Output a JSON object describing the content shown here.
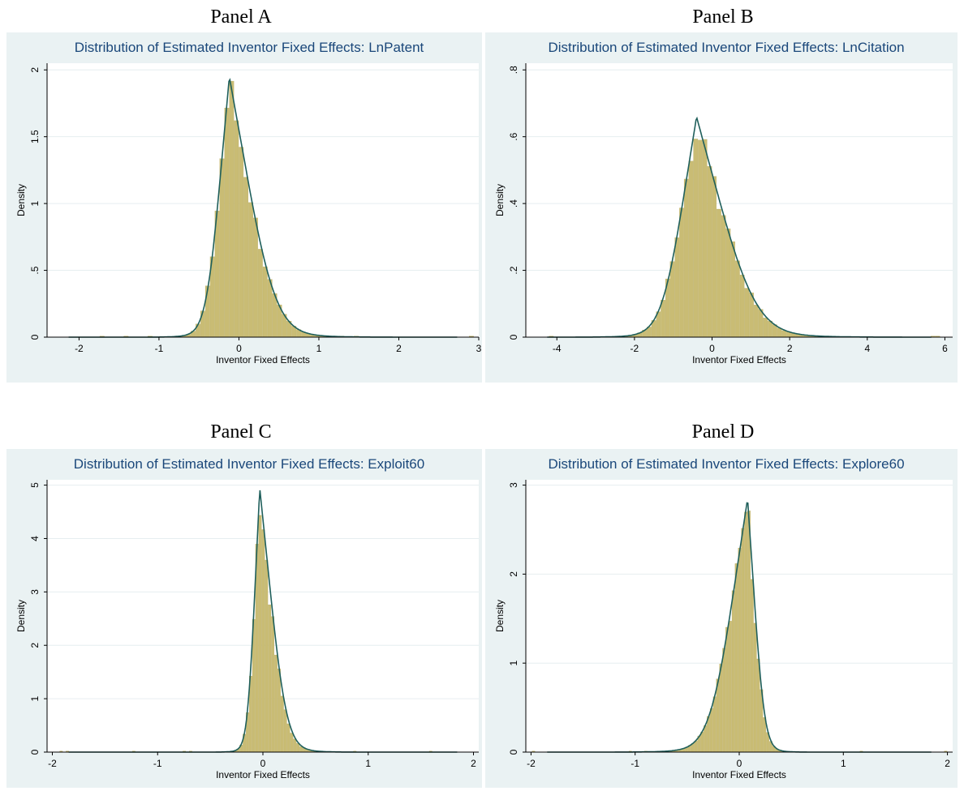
{
  "panels": [
    {
      "label": "Panel A"
    },
    {
      "label": "Panel B"
    },
    {
      "label": "Panel C"
    },
    {
      "label": "Panel D"
    }
  ],
  "colors": {
    "background": "#eaf2f3",
    "plot_area": "#ffffff",
    "bar_fill": "#c9bc74",
    "bar_edge": "#b8ab63",
    "density_line": "#1f5f5b",
    "gridline": "#e6eef0",
    "title": "#1a477a"
  },
  "chart_data": [
    {
      "type": "bar",
      "title": "Distribution of Estimated Inventor Fixed Effects: LnPatent",
      "xlabel": "Inventor Fixed Effects",
      "ylabel": "Density",
      "xlim": [
        -2.4,
        3.0
      ],
      "ylim": [
        0,
        2.05
      ],
      "xticks": [
        -2,
        -1,
        0,
        1,
        2,
        3
      ],
      "xtick_labels": [
        "-2",
        "-1",
        "0",
        "1",
        "2",
        "3"
      ],
      "yticks": [
        0,
        0.5,
        1,
        1.5,
        2
      ],
      "ytick_labels": [
        "0",
        ".5",
        "1",
        "1.5",
        "2"
      ],
      "grid": true,
      "bin_width": 0.06,
      "density": {
        "mode": -0.12,
        "peak": 1.95,
        "left_scale": 0.16,
        "right_scale": 0.32
      },
      "histogram_peak": 1.93
    },
    {
      "type": "bar",
      "title": "Distribution of Estimated Inventor Fixed Effects: LnCitation",
      "xlabel": "Inventor Fixed Effects",
      "ylabel": "Density",
      "xlim": [
        -4.8,
        6.2
      ],
      "ylim": [
        0,
        0.82
      ],
      "xticks": [
        -4,
        -2,
        0,
        2,
        4,
        6
      ],
      "xtick_labels": [
        "-4",
        "-2",
        "0",
        "2",
        "4",
        "6"
      ],
      "yticks": [
        0,
        0.2,
        0.4,
        0.6,
        0.8
      ],
      "ytick_labels": [
        "0",
        ".2",
        ".4",
        ".6",
        ".8"
      ],
      "grid": true,
      "bin_width": 0.12,
      "density": {
        "mode": -0.4,
        "peak": 0.66,
        "left_scale": 0.5,
        "right_scale": 0.85
      },
      "histogram_peak": 0.65
    },
    {
      "type": "bar",
      "title": "Distribution of Estimated Inventor Fixed Effects: Exploit60",
      "xlabel": "Inventor Fixed Effects",
      "ylabel": "Density",
      "xlim": [
        -2.05,
        2.05
      ],
      "ylim": [
        0,
        5.1
      ],
      "xticks": [
        -2,
        -1,
        0,
        1,
        2
      ],
      "xtick_labels": [
        "-2",
        "-1",
        "0",
        "1",
        "2"
      ],
      "yticks": [
        0,
        1,
        2,
        3,
        4,
        5
      ],
      "ytick_labels": [
        "0",
        "1",
        "2",
        "3",
        "4",
        "5"
      ],
      "grid": true,
      "bin_width": 0.03,
      "density": {
        "mode": -0.03,
        "peak": 4.95,
        "left_scale": 0.065,
        "right_scale": 0.14
      },
      "histogram_peak": 4.7
    },
    {
      "type": "bar",
      "title": "Distribution of Estimated Inventor Fixed Effects: Explore60",
      "xlabel": "Inventor Fixed Effects",
      "ylabel": "Density",
      "xlim": [
        -2.05,
        2.05
      ],
      "ylim": [
        0,
        3.06
      ],
      "xticks": [
        -2,
        -1,
        0,
        1,
        2
      ],
      "xtick_labels": [
        "-2",
        "-1",
        "0",
        "1",
        "2"
      ],
      "yticks": [
        0,
        1,
        2,
        3
      ],
      "ytick_labels": [
        "0",
        "1",
        "2",
        "3"
      ],
      "grid": true,
      "bin_width": 0.03,
      "density": {
        "mode": 0.08,
        "peak": 2.85,
        "left_scale": 0.2,
        "right_scale": 0.09
      },
      "histogram_peak": 2.82
    }
  ]
}
